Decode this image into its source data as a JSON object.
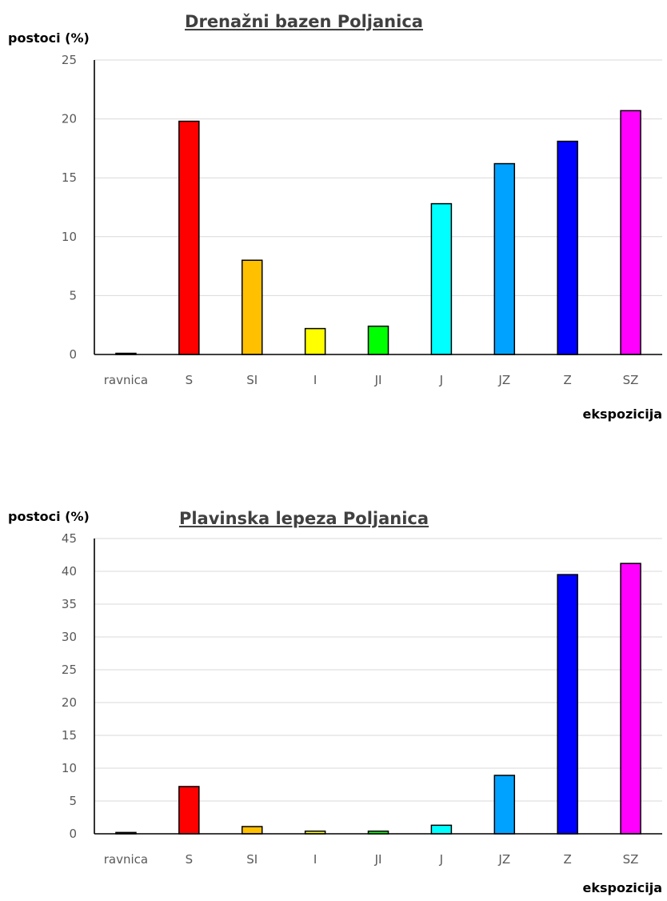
{
  "chart_data": [
    {
      "type": "bar",
      "title": "Drenažni bazen Poljanica",
      "ylabel": "postoci (%)",
      "xlabel": "ekspozicija",
      "categories": [
        "ravnica",
        "S",
        "SI",
        "I",
        "JI",
        "J",
        "JZ",
        "Z",
        "SZ"
      ],
      "values": [
        0.1,
        19.8,
        8.0,
        2.2,
        2.4,
        12.8,
        16.2,
        18.1,
        20.7
      ],
      "colors": [
        "#a6a6a6",
        "#ff0000",
        "#ffc000",
        "#ffff00",
        "#00ff00",
        "#00ffff",
        "#00a2ff",
        "#0000ff",
        "#ff00ff"
      ],
      "ylim": [
        0,
        25
      ],
      "yticks": [
        0,
        5,
        10,
        15,
        20,
        25
      ],
      "grid": true
    },
    {
      "type": "bar",
      "title": "Plavinska lepeza Poljanica",
      "ylabel": "postoci (%)",
      "xlabel": "ekspozicija",
      "categories": [
        "ravnica",
        "S",
        "SI",
        "I",
        "JI",
        "J",
        "JZ",
        "Z",
        "SZ"
      ],
      "values": [
        0.2,
        7.2,
        1.1,
        0.4,
        0.4,
        1.3,
        8.9,
        39.5,
        41.2
      ],
      "colors": [
        "#a6a6a6",
        "#ff0000",
        "#ffc000",
        "#ffff00",
        "#00ff00",
        "#00ffff",
        "#00a2ff",
        "#0000ff",
        "#ff00ff"
      ],
      "ylim": [
        0,
        45
      ],
      "yticks": [
        0,
        5,
        10,
        15,
        20,
        25,
        30,
        35,
        40,
        45
      ],
      "grid": true
    }
  ]
}
